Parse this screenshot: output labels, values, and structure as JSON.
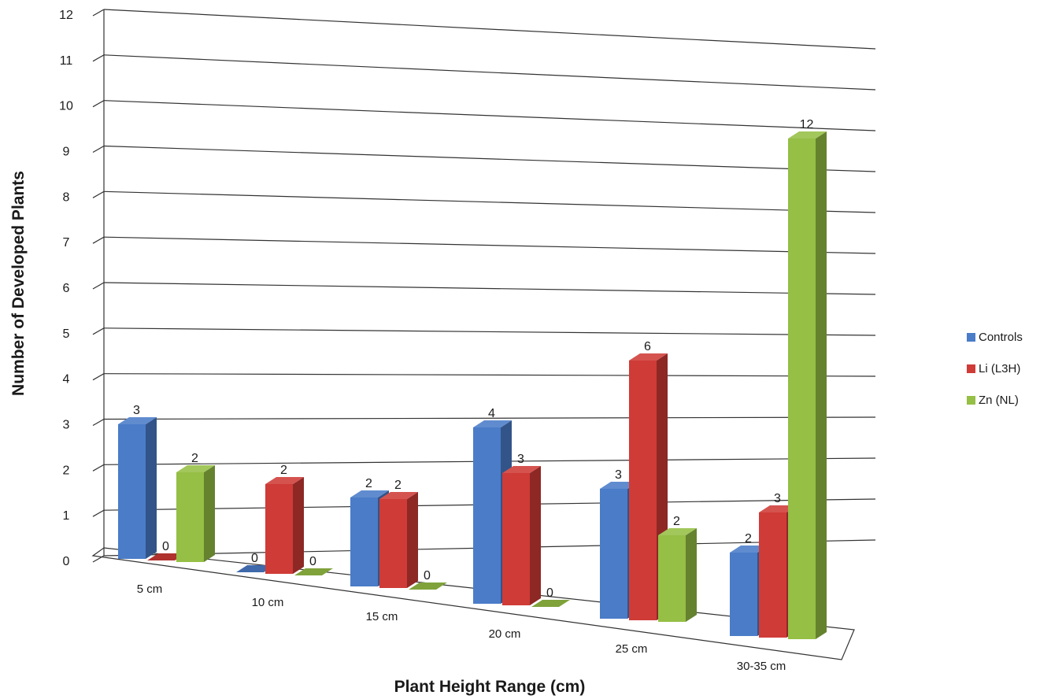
{
  "chart_data": {
    "type": "bar",
    "style": "3d-clustered-column",
    "categories": [
      "5 cm",
      "10 cm",
      "15 cm",
      "20 cm",
      "25 cm",
      "30-35 cm"
    ],
    "series": [
      {
        "name": "Controls",
        "color": "#4a7cc8",
        "values": [
          3,
          0,
          2,
          4,
          3,
          2
        ]
      },
      {
        "name": "Li (L3H)",
        "color": "#cf3b37",
        "values": [
          0,
          2,
          2,
          3,
          6,
          3
        ]
      },
      {
        "name": "Zn (NL)",
        "color": "#95bf45",
        "values": [
          2,
          0,
          0,
          0,
          2,
          12
        ]
      }
    ],
    "xlabel": "Plant Height Range (cm)",
    "ylabel": "Number of Developed Plants",
    "ylim": [
      0,
      12
    ],
    "yticks": [
      0,
      1,
      2,
      3,
      4,
      5,
      6,
      7,
      8,
      9,
      10,
      11,
      12
    ],
    "grid": true,
    "legend_position": "right"
  }
}
